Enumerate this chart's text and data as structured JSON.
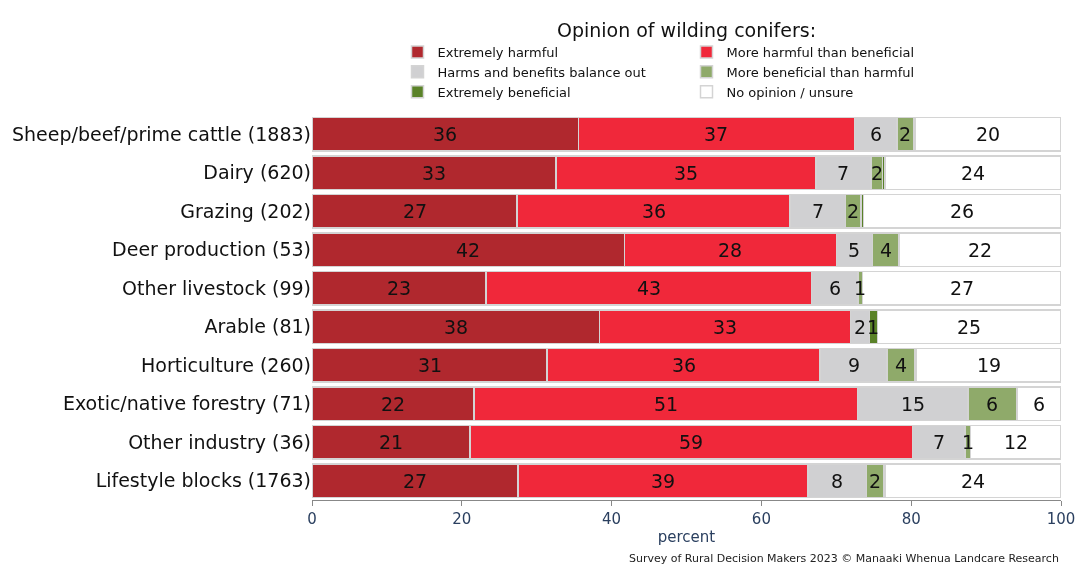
{
  "chart_data": {
    "type": "bar",
    "orientation": "horizontal",
    "stacked": true,
    "legend_title": "Opinion of wilding conifers:",
    "xlabel": "percent",
    "categories": [
      "Sheep/beef/prime cattle (1883)",
      "Dairy (620)",
      "Grazing (202)",
      "Deer production (53)",
      "Other livestock (99)",
      "Arable (81)",
      "Horticulture (260)",
      "Exotic/native forestry (71)",
      "Other industry (36)",
      "Lifestyle blocks (1763)"
    ],
    "series": [
      {
        "name": "Extremely harmful",
        "color": "#b0282e",
        "values": [
          35.6,
          32.6,
          27.4,
          41.7,
          23.2,
          38.4,
          31.4,
          21.6,
          21.1,
          27.5
        ],
        "value_labels": [
          "36",
          "33",
          "27",
          "42",
          "23",
          "38",
          "31",
          "22",
          "21",
          "27"
        ]
      },
      {
        "name": "More harmful than beneficial",
        "color": "#f0283a",
        "values": [
          36.8,
          34.7,
          36.4,
          28.3,
          43.5,
          33.5,
          36.4,
          51.2,
          59.1,
          38.7
        ],
        "value_labels": [
          "37",
          "35",
          "36",
          "28",
          "43",
          "33",
          "36",
          "51",
          "59",
          "39"
        ]
      },
      {
        "name": "Harms and benefits balance out",
        "color": "#d0d0d2",
        "values": [
          5.7,
          7.3,
          7.4,
          4.8,
          6.2,
          2.5,
          9.0,
          14.8,
          7.0,
          7.8
        ],
        "value_labels": [
          "6",
          "7",
          "7",
          "5",
          "6",
          "2",
          "9",
          "15",
          "7",
          "8"
        ]
      },
      {
        "name": "More beneficial than harmful",
        "color": "#8faa6a",
        "values": [
          2.2,
          1.6,
          2.1,
          3.6,
          0.6,
          0,
          3.7,
          6.5,
          0.7,
          2.3
        ],
        "value_labels": [
          "2",
          "2",
          "2",
          "4",
          "1",
          null,
          "4",
          "6",
          "1",
          "2"
        ]
      },
      {
        "name": "Extremely beneficial",
        "color": "#5a8228",
        "values": [
          0.2,
          0.3,
          0.3,
          0,
          0,
          1.1,
          0.2,
          0,
          0,
          0.2
        ],
        "value_labels": [
          null,
          null,
          null,
          null,
          null,
          "1",
          null,
          null,
          null,
          null
        ]
      },
      {
        "name": "No opinion / unsure",
        "color": "#ffffff",
        "values": [
          19.5,
          23.5,
          26.4,
          21.6,
          26.5,
          24.5,
          19.3,
          5.9,
          12.1,
          23.5
        ],
        "value_labels": [
          "20",
          "24",
          "26",
          "22",
          "27",
          "25",
          "19",
          "6",
          "12",
          "24"
        ]
      }
    ],
    "xlim": [
      0,
      100
    ],
    "xticks": [
      0,
      20,
      40,
      60,
      80,
      100
    ],
    "legend": "top",
    "annotations": [
      "Survey of Rural Decision Makers 2023 © Manaaki Whenua Landcare Research"
    ]
  }
}
